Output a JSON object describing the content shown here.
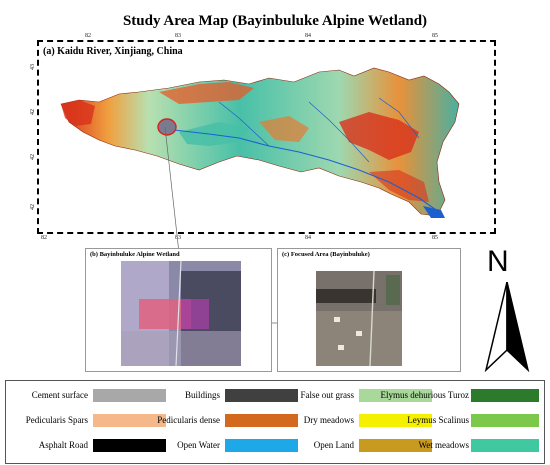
{
  "title": "Study Area Map (Bayinbuluke Alpine Wetland)",
  "panel_a": {
    "label": "(a) Kaidu River, Xinjiang, China",
    "top_ticks": [
      "82",
      "83",
      "84",
      "85"
    ],
    "bottom_ticks": [
      "82",
      "83",
      "84",
      "85"
    ],
    "side_ticks": [
      "43",
      "42",
      "42",
      "42"
    ]
  },
  "panel_b": {
    "label": "(b) Bayinbuluke Alpine Wetland"
  },
  "panel_c": {
    "label": "(c) Focused Area (Bayinbuluke)"
  },
  "north_arrow": {
    "letter": "N"
  },
  "colors": {
    "lowland": "#3cc3a8",
    "mid": "#9ed8b0",
    "high": "#e8913a",
    "peak": "#d8321c",
    "river": "#1e5fd0"
  },
  "legend": [
    {
      "label": "Cement surface",
      "color": "#a8a8a8"
    },
    {
      "label": "Buildings",
      "color": "#404040"
    },
    {
      "label": "False out grass",
      "color": "#a8d89a"
    },
    {
      "label": "Elymus dehurious Turoz",
      "color": "#2c7a2c"
    },
    {
      "label": "Pedicularis Spars",
      "color": "#f4b88a"
    },
    {
      "label": "Pedicularis dense",
      "color": "#d2691e"
    },
    {
      "label": "Dry meadows",
      "color": "#f4f000"
    },
    {
      "label": "Leymus Scalinus",
      "color": "#7cc84a"
    },
    {
      "label": "Asphalt Road",
      "color": "#000000"
    },
    {
      "label": "Open Water",
      "color": "#1fa8e8"
    },
    {
      "label": "Open Land",
      "color": "#c89a20"
    },
    {
      "label": "Wet meadows",
      "color": "#40c8a0"
    }
  ]
}
